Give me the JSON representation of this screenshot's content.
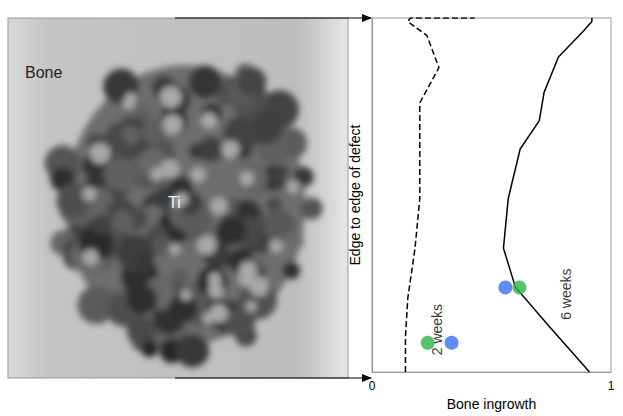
{
  "image_labels": [
    "Bone",
    "Ti"
  ],
  "chart_data": {
    "type": "line",
    "x_label": "Bone ingrowth",
    "y_label": "Edge to edge of defect",
    "xlim": [
      0,
      1
    ],
    "xticks": [
      0,
      1
    ],
    "ylim": [
      0,
      1
    ],
    "tick_labels": "x",
    "grid": false,
    "series": [
      {
        "name": "2 weeks",
        "color": "#000000",
        "line_style": "dashed",
        "x": [
          0.14,
          0.14,
          0.15,
          0.18,
          0.2,
          0.2,
          0.2,
          0.28,
          0.23,
          0.17,
          0.15,
          0.16,
          0.43
        ],
        "y": [
          0,
          0.1,
          0.21,
          0.35,
          0.49,
          0.63,
          0.76,
          0.86,
          0.95,
          0.98,
          0.99,
          1,
          1
        ]
      },
      {
        "name": "6 weeks",
        "color": "#000000",
        "line_style": "solid",
        "x": [
          0.91,
          0.74,
          0.6,
          0.55,
          0.57,
          0.62,
          0.7,
          0.72,
          0.78,
          0.88,
          0.92,
          0.92
        ],
        "y": [
          0,
          0.13,
          0.24,
          0.35,
          0.49,
          0.63,
          0.71,
          0.79,
          0.89,
          0.96,
          0.99,
          1
        ]
      },
      {
        "type": "scatter",
        "marker": "circle",
        "x": [
          0.233,
          0.333,
          0.558,
          0.617
        ],
        "y": [
          0.083,
          0.083,
          0.239,
          0.239
        ],
        "colors": [
          "#2fb34a",
          "#3b6ef0",
          "#3b6ef0",
          "#2fb34a"
        ]
      }
    ],
    "annotations": [
      {
        "text": "2 weeks",
        "x": 0.27,
        "y": 0.12
      },
      {
        "text": "6 weeks",
        "x": 0.81,
        "y": 0.22
      }
    ]
  }
}
